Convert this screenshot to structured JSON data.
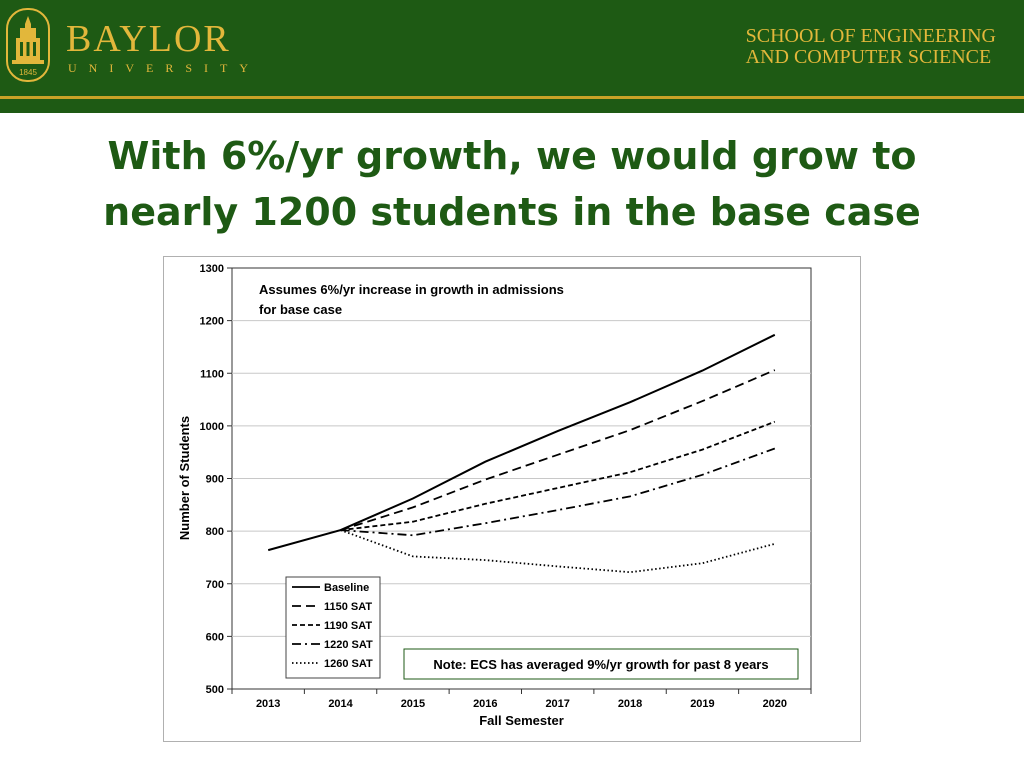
{
  "header": {
    "logo_word": "BAYLOR",
    "logo_sub": "UNIVERSITY",
    "seal_year": "1845",
    "school_line1": "SCHOOL OF ENGINEERING",
    "school_line2": "AND COMPUTER SCIENCE"
  },
  "slide": {
    "title_line1": "With 6%/yr growth, we would grow to",
    "title_line2": "nearly 1200 students in the base case"
  },
  "colors": {
    "banner": "#1e5a14",
    "accent": "#e2b73b",
    "title": "#1e5a14"
  },
  "chart_data": {
    "type": "line",
    "xlabel": "Fall Semester",
    "ylabel": "Number of Students",
    "ylim": [
      500,
      1300
    ],
    "yticks": [
      500,
      600,
      700,
      800,
      900,
      1000,
      1100,
      1200,
      1300
    ],
    "categories": [
      "2013",
      "2014",
      "2015",
      "2016",
      "2017",
      "2018",
      "2019",
      "2020"
    ],
    "grid": "horizontal",
    "legend_position": "bottom-left",
    "series": [
      {
        "name": "Baseline",
        "style": "solid",
        "values": [
          764,
          802,
          862,
          932,
          990,
          1045,
          1105,
          1173
        ]
      },
      {
        "name": "1150 SAT",
        "style": "long-dash",
        "values": [
          null,
          802,
          845,
          898,
          945,
          992,
          1047,
          1106
        ]
      },
      {
        "name": "1190 SAT",
        "style": "short-dash",
        "values": [
          null,
          802,
          818,
          852,
          882,
          912,
          955,
          1008
        ]
      },
      {
        "name": "1220 SAT",
        "style": "dash-dot",
        "values": [
          null,
          802,
          792,
          815,
          840,
          866,
          907,
          957
        ]
      },
      {
        "name": "1260 SAT",
        "style": "dotted",
        "values": [
          null,
          802,
          752,
          745,
          733,
          722,
          739,
          776
        ]
      }
    ],
    "annotations": {
      "top_line1": "Assumes 6%/yr  increase in growth in admissions",
      "top_line2": "for base case",
      "note": "Note: ECS has averaged 9%/yr growth for past 8 years"
    }
  }
}
